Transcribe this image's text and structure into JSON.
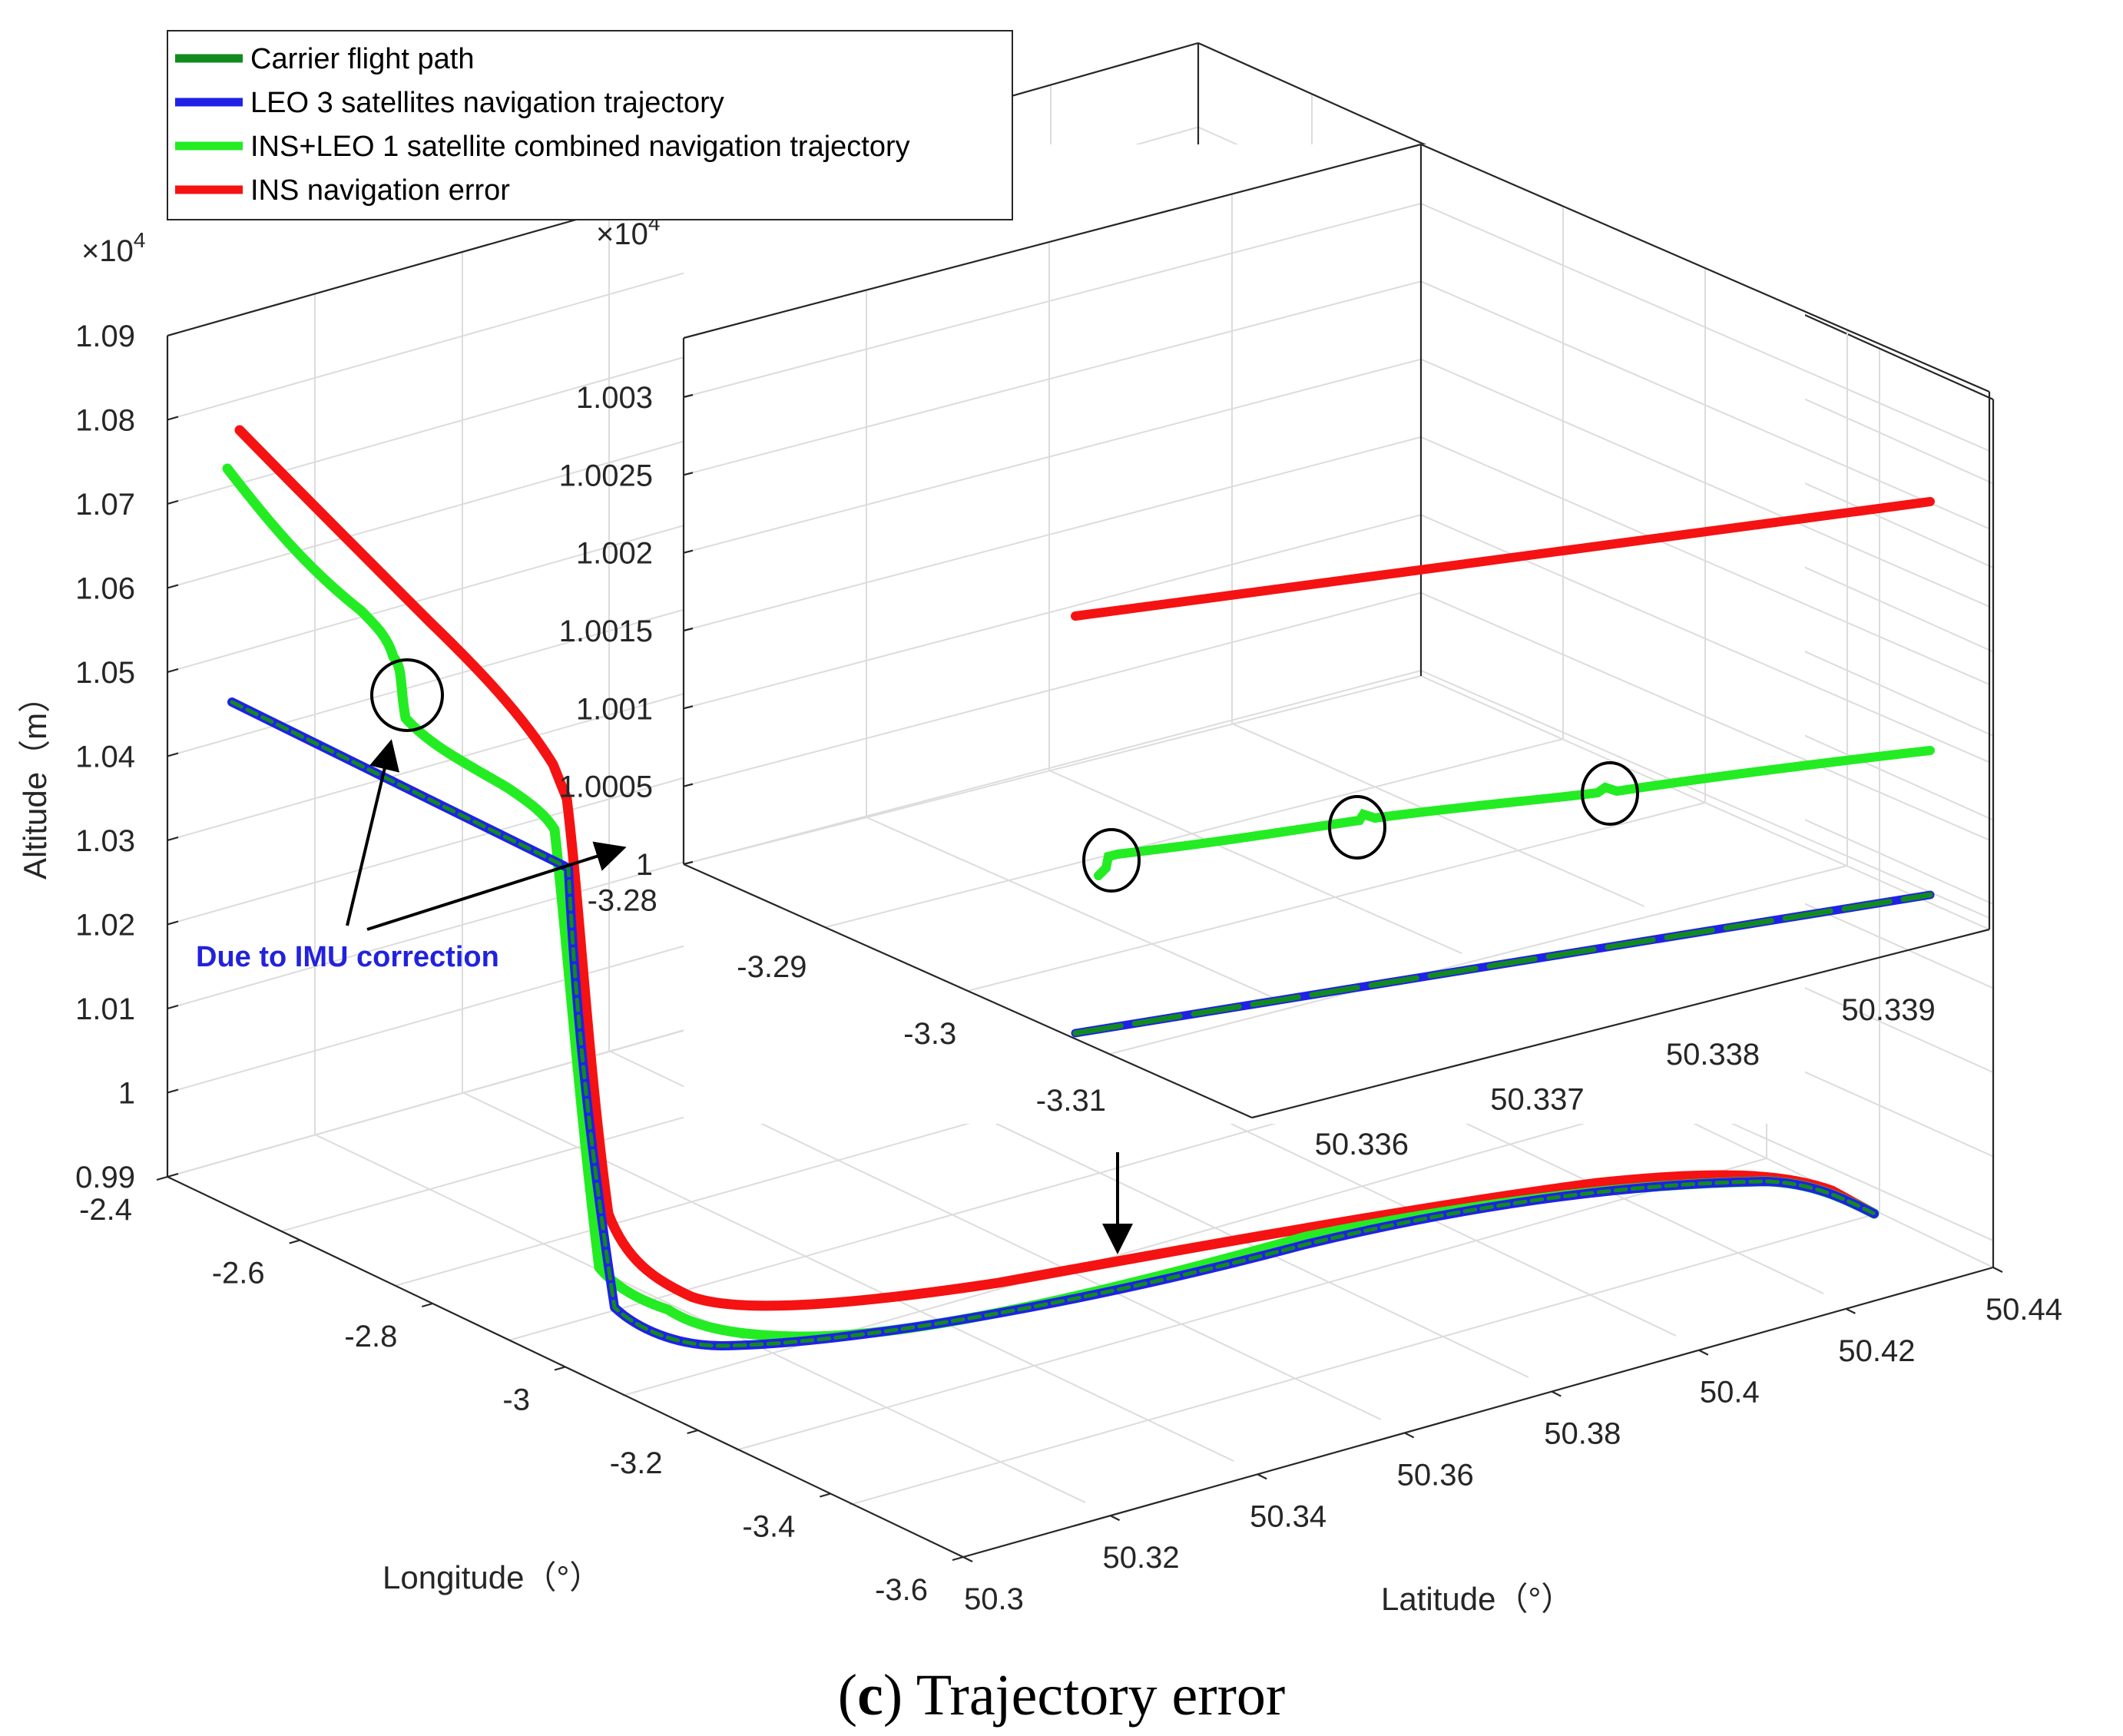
{
  "chart_data": {
    "type": "line",
    "title": "",
    "caption": {
      "letter": "c",
      "open": "(",
      "close": ")",
      "text": " Trajectory error"
    },
    "main": {
      "xlabel": "Longitude（°）",
      "ylabel": "Latitude（°）",
      "zlabel": "Altitude（m）",
      "z_multiplier": "×10",
      "z_exponent": "4",
      "xlim": [
        -3.6,
        -2.4
      ],
      "ylim": [
        50.3,
        50.44
      ],
      "zlim": [
        0.99,
        1.09
      ],
      "x_ticks": [
        "-2.4",
        "-2.6",
        "-2.8",
        "-3",
        "-3.2",
        "-3.4",
        "-3.6"
      ],
      "y_ticks": [
        "50.3",
        "50.32",
        "50.34",
        "50.36",
        "50.38",
        "50.4",
        "50.42",
        "50.44"
      ],
      "z_ticks": [
        "1.09",
        "1.08",
        "1.07",
        "1.06",
        "1.05",
        "1.04",
        "1.03",
        "1.02",
        "1.01",
        "1",
        "0.99"
      ]
    },
    "inset": {
      "x_ticks": [
        "-3.28",
        "-3.29",
        "-3.3",
        "-3.31"
      ],
      "y_ticks": [
        "50.336",
        "50.337",
        "50.338",
        "50.339"
      ],
      "z_ticks": [
        "1.003",
        "1.0025",
        "1.002",
        "1.0015",
        "1.001",
        "1.0005",
        "1"
      ],
      "z_multiplier": "×10",
      "z_exponent": "4"
    },
    "series": [
      {
        "name": "Carrier flight path",
        "color": "#118a1f"
      },
      {
        "name": "LEO 3 satellites navigation trajectory",
        "color": "#1f22e6"
      },
      {
        "name": "INS+LEO 1 satellite combined navigation trajectory",
        "color": "#23ec23"
      },
      {
        "name": "INS navigation error",
        "color": "#f51212"
      }
    ],
    "annotation": {
      "text": "Due to IMU correction",
      "color": "#2222dd"
    }
  }
}
